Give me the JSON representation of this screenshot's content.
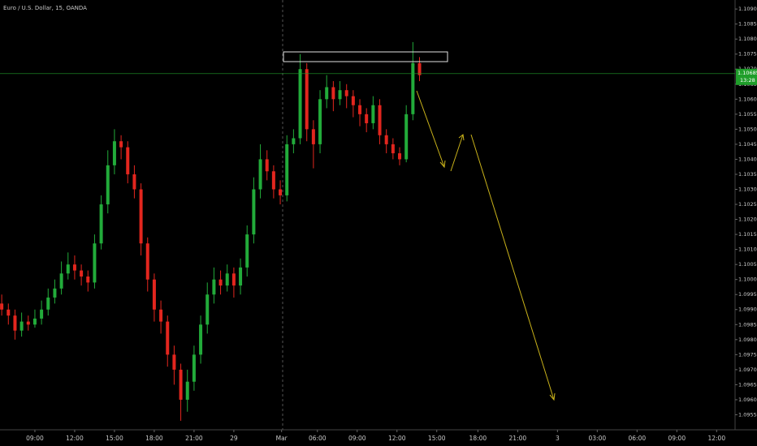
{
  "chart_data": {
    "type": "candlestick",
    "title": "Euro / U.S. Dollar, 15, OANDA",
    "x": [
      6.5,
      7,
      7.5,
      8,
      8.5,
      9,
      9.5,
      10,
      10.5,
      11,
      11.5,
      12,
      12.5,
      13,
      13.5,
      14,
      14.5,
      15,
      15.5,
      16,
      16.5,
      17,
      17.5,
      18,
      18.5,
      19,
      19.5,
      20,
      20.5,
      21,
      21.5,
      22,
      22.5,
      23,
      23.5,
      24,
      24.5,
      25,
      25.5,
      26,
      26.5,
      27,
      27.5,
      28,
      28.5,
      29,
      29.5,
      30,
      30.5,
      31,
      31.5,
      32,
      32.5,
      33,
      33.5,
      34,
      34.5,
      35,
      35.5,
      36,
      36.5,
      37,
      37.5,
      38
    ],
    "open": [
      1.0992,
      1.099,
      1.0988,
      1.0983,
      1.0986,
      1.0985,
      1.0987,
      1.099,
      1.0994,
      1.0997,
      1.1002,
      1.1005,
      1.1003,
      1.1001,
      1.0999,
      1.1012,
      1.1025,
      1.1038,
      1.1046,
      1.1044,
      1.1035,
      1.103,
      1.1012,
      1.1,
      1.099,
      1.0986,
      1.0975,
      1.097,
      1.096,
      1.0966,
      1.0975,
      1.0985,
      1.0995,
      1.1,
      1.0998,
      1.1002,
      1.0998,
      1.1004,
      1.1015,
      1.103,
      1.104,
      1.1036,
      1.103,
      1.1028,
      1.1045,
      1.1047,
      1.107,
      1.105,
      1.1045,
      1.106,
      1.1064,
      1.106,
      1.1063,
      1.1061,
      1.1058,
      1.1055,
      1.1052,
      1.1058,
      1.1048,
      1.1045,
      1.1042,
      1.104,
      1.1055,
      1.1072
    ],
    "high": [
      1.0995,
      1.0992,
      1.099,
      1.0989,
      1.0988,
      1.099,
      1.0993,
      1.0997,
      1.1,
      1.1006,
      1.1009,
      1.1008,
      1.1005,
      1.1003,
      1.1015,
      1.1028,
      1.1043,
      1.105,
      1.1048,
      1.1046,
      1.1038,
      1.1032,
      1.1014,
      1.1002,
      1.0993,
      1.0988,
      1.0978,
      1.0972,
      1.097,
      1.0978,
      1.0988,
      1.0999,
      1.1004,
      1.1003,
      1.1005,
      1.1004,
      1.1007,
      1.1018,
      1.1034,
      1.1045,
      1.1043,
      1.1038,
      1.1033,
      1.1048,
      1.105,
      1.1075,
      1.1072,
      1.1053,
      1.1063,
      1.1068,
      1.1066,
      1.1066,
      1.1065,
      1.1063,
      1.106,
      1.1057,
      1.1061,
      1.106,
      1.105,
      1.1047,
      1.1044,
      1.1058,
      1.1079,
      1.1074
    ],
    "low": [
      1.0988,
      1.0985,
      1.098,
      1.0981,
      1.0983,
      1.0984,
      1.0985,
      1.0988,
      1.0992,
      1.0995,
      1.1,
      1.1,
      1.0998,
      1.0996,
      1.0997,
      1.101,
      1.1022,
      1.1035,
      1.104,
      1.1032,
      1.1027,
      1.1008,
      1.0996,
      1.0986,
      1.0982,
      1.0971,
      1.0965,
      1.0953,
      1.0956,
      1.0963,
      1.0972,
      1.0982,
      1.0992,
      1.0995,
      1.0996,
      1.0994,
      1.0995,
      1.1001,
      1.1012,
      1.1027,
      1.1033,
      1.1027,
      1.1025,
      1.1026,
      1.1042,
      1.1045,
      1.1046,
      1.1037,
      1.1042,
      1.1057,
      1.1056,
      1.1058,
      1.1057,
      1.1054,
      1.1051,
      1.1049,
      1.105,
      1.1045,
      1.1042,
      1.104,
      1.1038,
      1.1039,
      1.1053,
      1.1066
    ],
    "close": [
      1.099,
      1.0988,
      1.0983,
      1.0986,
      1.0985,
      1.0987,
      1.099,
      1.0994,
      1.0997,
      1.1002,
      1.1005,
      1.1003,
      1.1001,
      1.0999,
      1.1012,
      1.1025,
      1.1038,
      1.1046,
      1.1044,
      1.1035,
      1.103,
      1.1012,
      1.1,
      1.099,
      1.0986,
      1.0975,
      1.097,
      1.096,
      1.0966,
      1.0975,
      1.0985,
      1.0995,
      1.1,
      1.0998,
      1.1002,
      1.0998,
      1.1004,
      1.1015,
      1.103,
      1.104,
      1.1036,
      1.103,
      1.1028,
      1.1045,
      1.1047,
      1.107,
      1.105,
      1.1045,
      1.106,
      1.1064,
      1.106,
      1.1063,
      1.1061,
      1.1058,
      1.1055,
      1.1052,
      1.1058,
      1.1048,
      1.1045,
      1.1042,
      1.104,
      1.1055,
      1.1072,
      1.1068
    ],
    "up_color": "#22ab3a",
    "down_color": "#e3261e",
    "xlim": [
      6.37,
      61.79
    ],
    "xticks": [
      {
        "value": 9,
        "label": "09:00"
      },
      {
        "value": 12,
        "label": "12:00"
      },
      {
        "value": 15,
        "label": "15:00"
      },
      {
        "value": 18,
        "label": "18:00"
      },
      {
        "value": 21,
        "label": "21:00"
      },
      {
        "value": 24,
        "label": "29"
      },
      {
        "value": 27.6,
        "label": "Mar"
      },
      {
        "value": 30.3,
        "label": "06:00"
      },
      {
        "value": 33.3,
        "label": "09:00"
      },
      {
        "value": 36.3,
        "label": "12:00"
      },
      {
        "value": 39.3,
        "label": "15:00"
      },
      {
        "value": 42.4,
        "label": "18:00"
      },
      {
        "value": 45.4,
        "label": "21:00"
      },
      {
        "value": 48.4,
        "label": "3"
      },
      {
        "value": 51.4,
        "label": "03:00"
      },
      {
        "value": 54.4,
        "label": "06:00"
      },
      {
        "value": 57.4,
        "label": "09:00"
      },
      {
        "value": 60.4,
        "label": "12:00"
      }
    ],
    "ylim": [
      1.095,
      1.1093
    ],
    "yticks": [
      {
        "value": 1.0955,
        "label": "1.09550"
      },
      {
        "value": 1.096,
        "label": "1.09600"
      },
      {
        "value": 1.0965,
        "label": "1.09650"
      },
      {
        "value": 1.097,
        "label": "1.09700"
      },
      {
        "value": 1.0975,
        "label": "1.09750"
      },
      {
        "value": 1.098,
        "label": "1.09800"
      },
      {
        "value": 1.0985,
        "label": "1.09850"
      },
      {
        "value": 1.099,
        "label": "1.09900"
      },
      {
        "value": 1.0995,
        "label": "1.09950"
      },
      {
        "value": 1.1,
        "label": "1.10000"
      },
      {
        "value": 1.1005,
        "label": "1.10050"
      },
      {
        "value": 1.101,
        "label": "1.10100"
      },
      {
        "value": 1.1015,
        "label": "1.10150"
      },
      {
        "value": 1.102,
        "label": "1.10200"
      },
      {
        "value": 1.1025,
        "label": "1.10250"
      },
      {
        "value": 1.103,
        "label": "1.10300"
      },
      {
        "value": 1.1035,
        "label": "1.10350"
      },
      {
        "value": 1.104,
        "label": "1.10400"
      },
      {
        "value": 1.1045,
        "label": "1.10450"
      },
      {
        "value": 1.105,
        "label": "1.10500"
      },
      {
        "value": 1.1055,
        "label": "1.10550"
      },
      {
        "value": 1.106,
        "label": "1.10600"
      },
      {
        "value": 1.1065,
        "label": "1.10650"
      },
      {
        "value": 1.107,
        "label": "1.10700"
      },
      {
        "value": 1.1075,
        "label": "1.10750"
      },
      {
        "value": 1.108,
        "label": "1.10800"
      },
      {
        "value": 1.1085,
        "label": "1.10850"
      },
      {
        "value": 1.109,
        "label": "1.10900"
      }
    ],
    "price_line": {
      "value": 1.10685,
      "label": "1.10685",
      "countdown": "13:28",
      "color": "#1f9e2a"
    }
  }
}
